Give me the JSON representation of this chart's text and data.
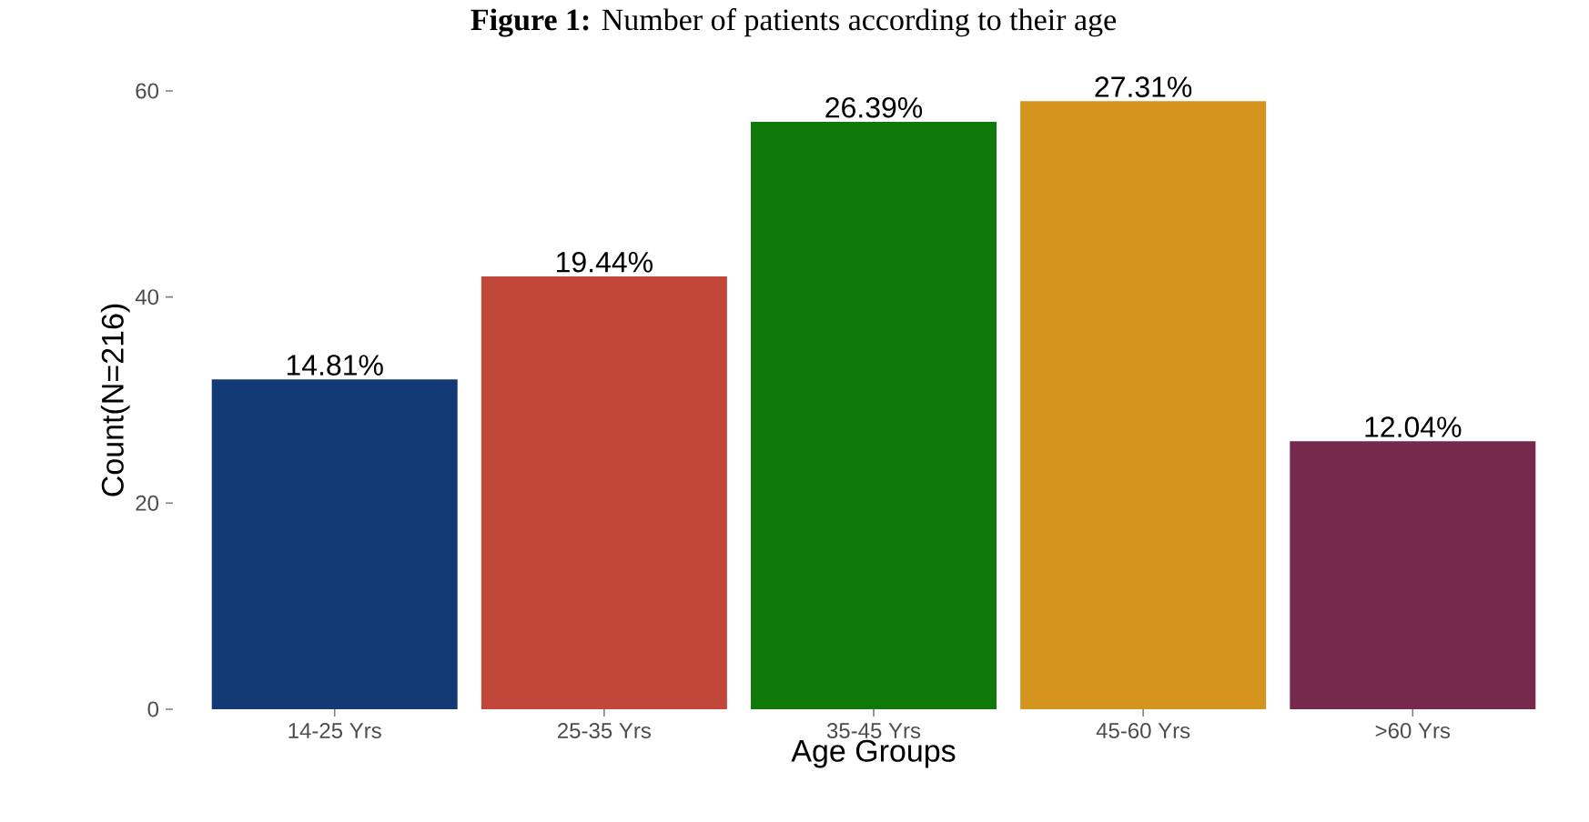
{
  "chart_data": {
    "type": "bar",
    "title": "**Figure 1:** Number of patients according to their age",
    "xlabel": "Age Groups",
    "ylabel": "Count(N=216)",
    "categories": [
      "14-25 Yrs",
      "25-35 Yrs",
      "35-45 Yrs",
      "45-60 Yrs",
      ">60 Yrs"
    ],
    "values": [
      32,
      42,
      57,
      59,
      26
    ],
    "colors": [
      "#143a75",
      "#c0473a",
      "#0f7a0a",
      "#d4941e",
      "#76294d"
    ],
    "annotations": [
      {
        "text": "14.81%",
        "x": "14-25 Yrs",
        "y": 32
      },
      {
        "text": "19.44%",
        "x": "25-35 Yrs",
        "y": 42
      },
      {
        "text": "26.39%",
        "x": "35-45 Yrs",
        "y": 57
      },
      {
        "text": "27.31%",
        "x": "45-60 Yrs",
        "y": 59
      },
      {
        "text": "12.04%",
        "x": ">60 Yrs",
        "y": 26
      }
    ],
    "ylim": [
      0,
      60
    ],
    "yticks": [
      0,
      20,
      40,
      60
    ]
  }
}
